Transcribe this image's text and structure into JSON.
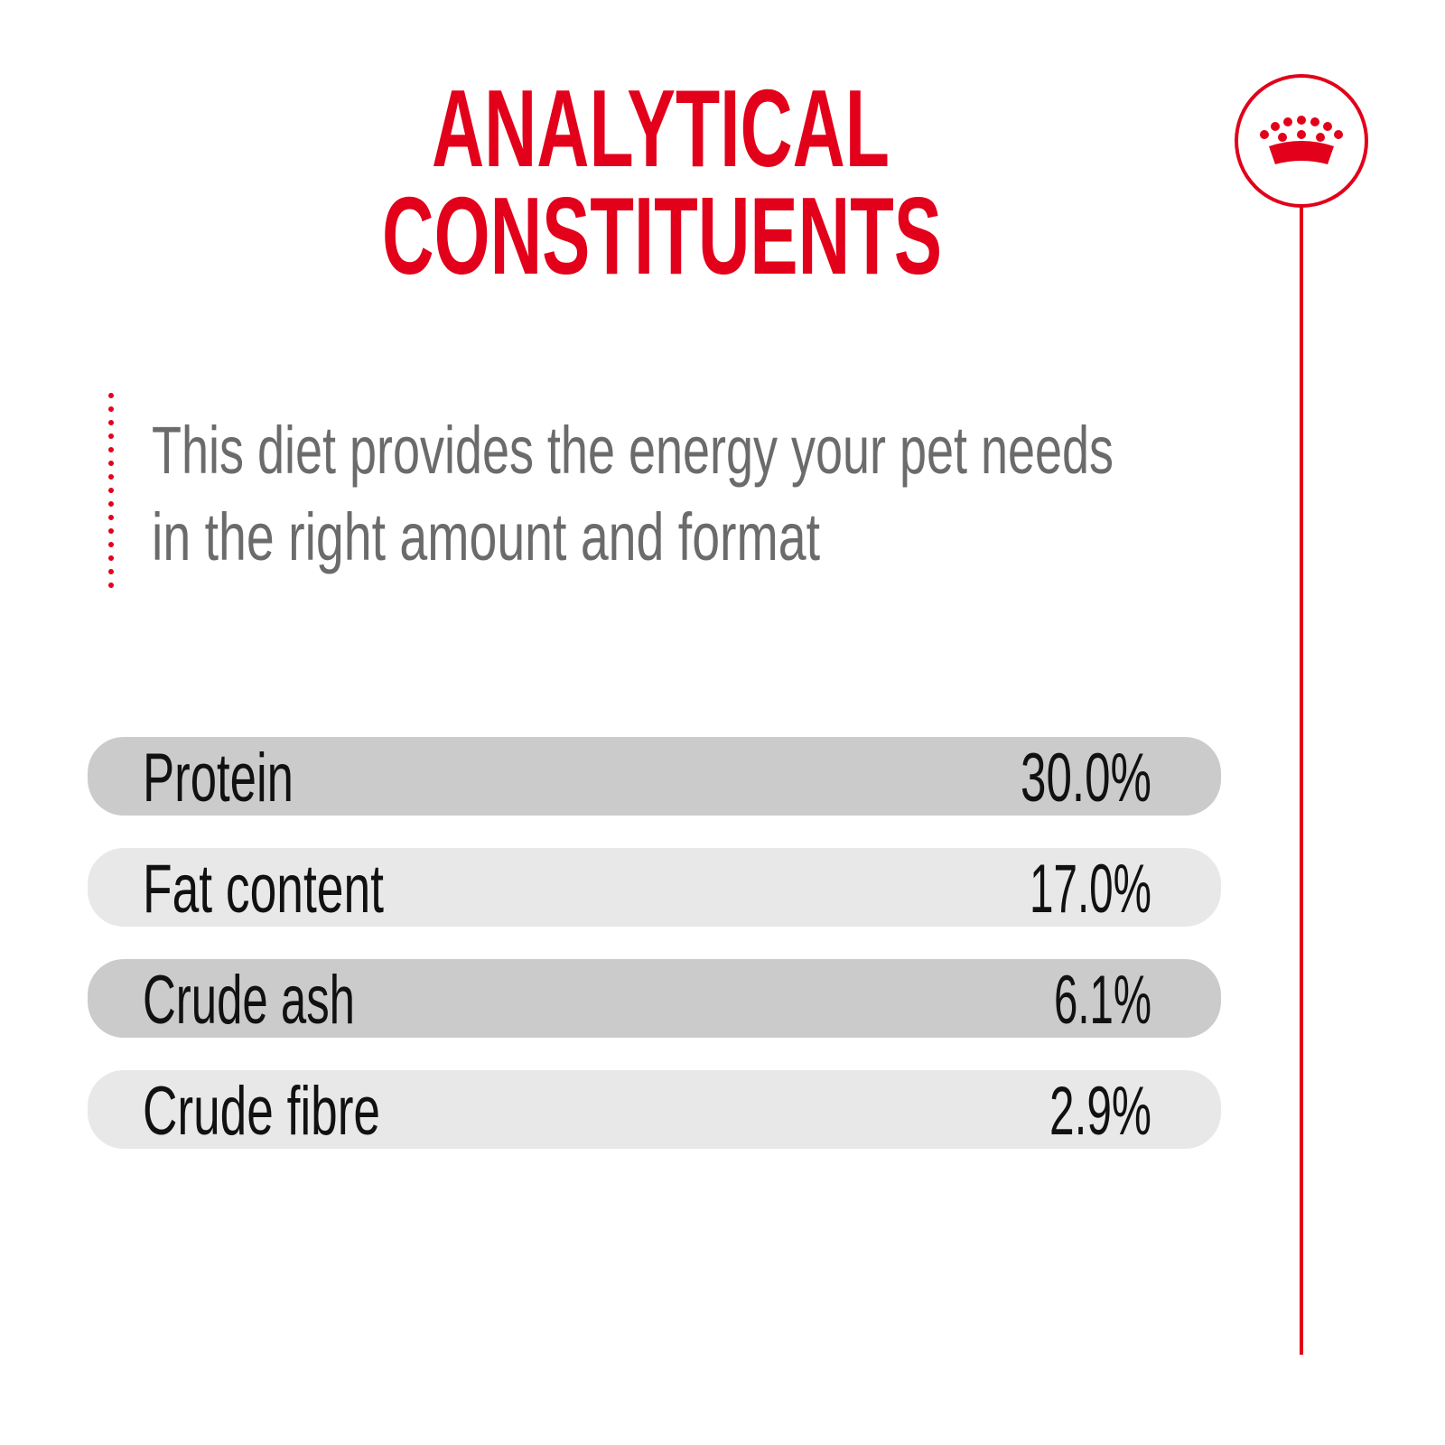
{
  "header": {
    "title_lines": [
      "ANALYTICAL",
      "CONSTITUENTS"
    ]
  },
  "description": {
    "lines": [
      "This diet provides the energy your pet needs",
      "in the right amount and format"
    ]
  },
  "table": {
    "rows": [
      [
        "Protein",
        "30.0%"
      ],
      [
        "Fat content",
        "17.0%"
      ],
      [
        "Crude ash",
        "6.1%"
      ],
      [
        "Crude fibre",
        "2.9%"
      ]
    ]
  }
}
